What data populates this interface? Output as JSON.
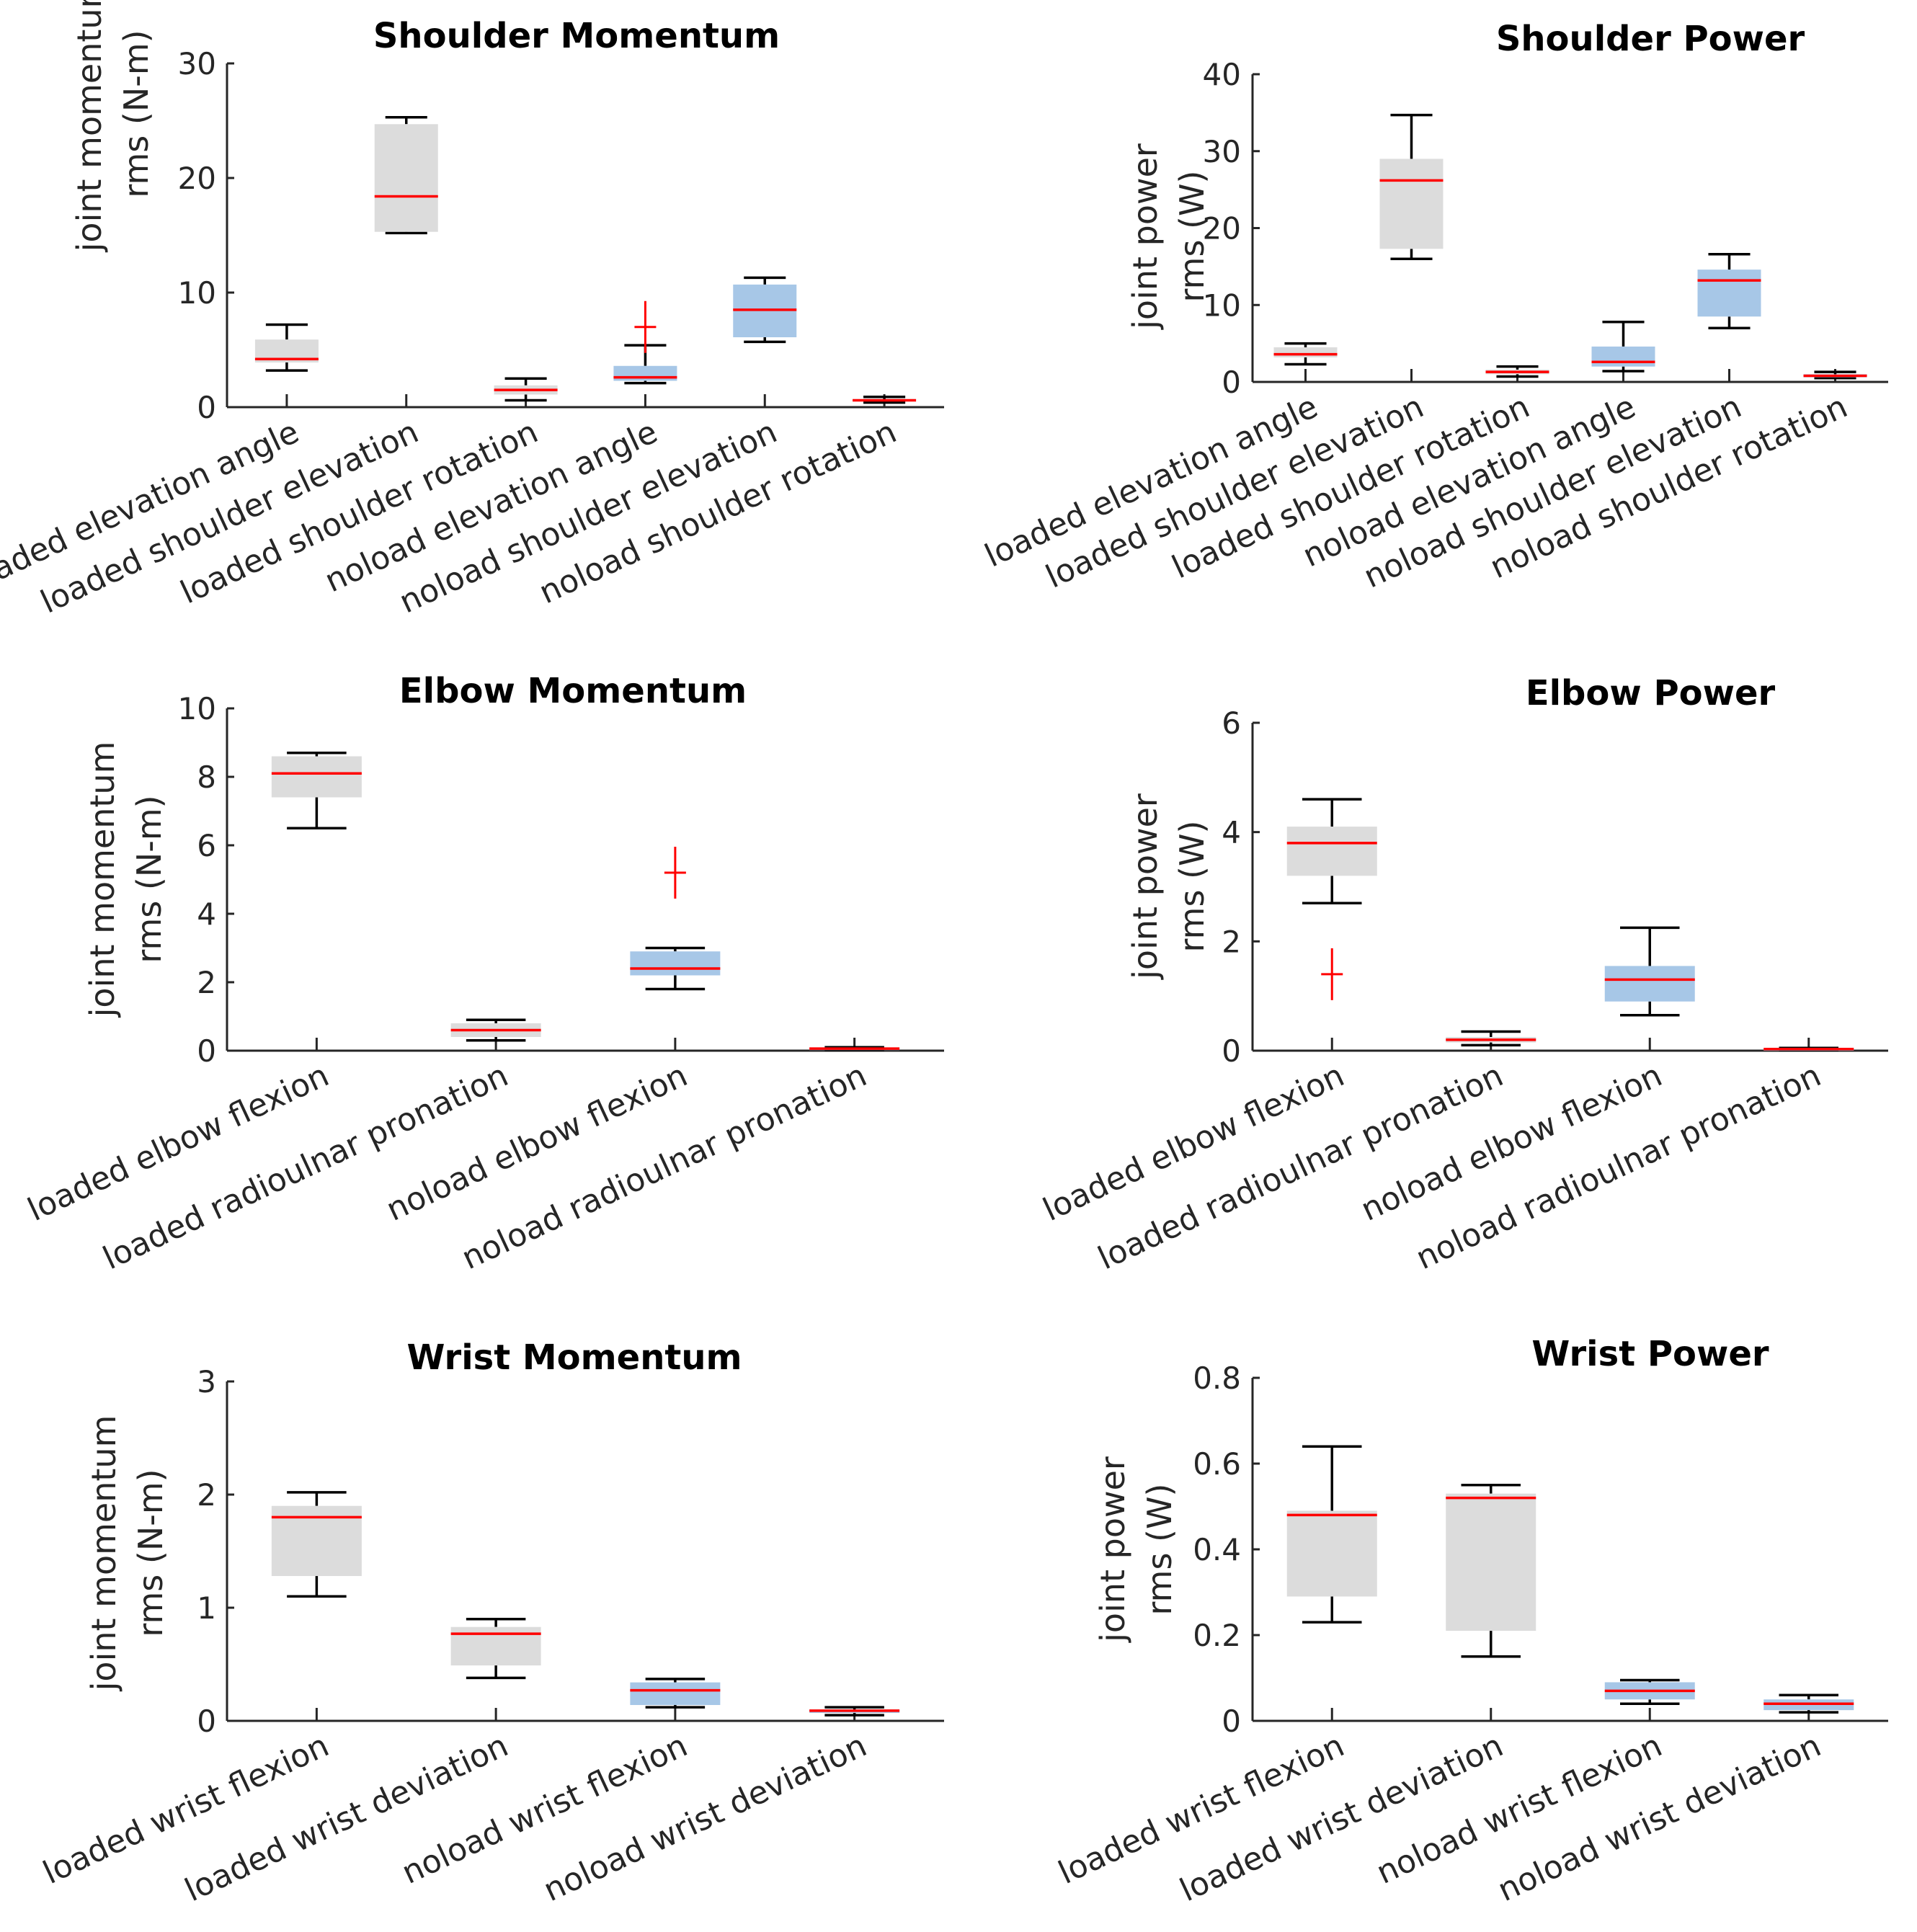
{
  "colors": {
    "loaded": "#dcdcdc",
    "noload": "#a7c7e7",
    "median": "#ff0000",
    "outlier": "#ff0000"
  },
  "chart_data": [
    {
      "type": "box",
      "title": "Shoulder Momentum",
      "ylabel": [
        "joint momentum",
        "rms (N-m)"
      ],
      "ylim": [
        0,
        30
      ],
      "yticks": [
        "0",
        "10",
        "20",
        "30"
      ],
      "categories": [
        "loaded elevation angle",
        "loaded shoulder elevation",
        "loaded shoulder rotation",
        "noload elevation angle",
        "noload shoulder elevation",
        "noload shoulder rotation"
      ],
      "boxes": [
        {
          "group": "loaded",
          "whisker_low": 3.2,
          "q1": 3.9,
          "median": 4.2,
          "q3": 5.9,
          "whisker_high": 7.2,
          "outliers": []
        },
        {
          "group": "loaded",
          "whisker_low": 15.2,
          "q1": 15.3,
          "median": 18.4,
          "q3": 24.7,
          "whisker_high": 25.3,
          "outliers": []
        },
        {
          "group": "loaded",
          "whisker_low": 0.6,
          "q1": 1.1,
          "median": 1.5,
          "q3": 1.9,
          "whisker_high": 2.5,
          "outliers": []
        },
        {
          "group": "noload",
          "whisker_low": 2.1,
          "q1": 2.3,
          "median": 2.6,
          "q3": 3.6,
          "whisker_high": 5.4,
          "outliers": [
            7.0
          ]
        },
        {
          "group": "noload",
          "whisker_low": 5.7,
          "q1": 6.1,
          "median": 8.5,
          "q3": 10.7,
          "whisker_high": 11.3,
          "outliers": []
        },
        {
          "group": "noload",
          "whisker_low": 0.4,
          "q1": 0.5,
          "median": 0.6,
          "q3": 0.7,
          "whisker_high": 0.9,
          "outliers": []
        }
      ]
    },
    {
      "type": "box",
      "title": "Shoulder Power",
      "ylabel": [
        "joint power",
        "rms (W)"
      ],
      "ylim": [
        0,
        40
      ],
      "yticks": [
        "0",
        "10",
        "20",
        "30",
        "40"
      ],
      "categories": [
        "loaded elevation angle",
        "loaded shoulder elevation",
        "loaded shoulder rotation",
        "noload elevation angle",
        "noload shoulder elevation",
        "noload shoulder rotation"
      ],
      "boxes": [
        {
          "group": "loaded",
          "whisker_low": 2.3,
          "q1": 3.2,
          "median": 3.6,
          "q3": 4.5,
          "whisker_high": 5.0,
          "outliers": []
        },
        {
          "group": "loaded",
          "whisker_low": 16.0,
          "q1": 17.3,
          "median": 26.2,
          "q3": 29.0,
          "whisker_high": 34.7,
          "outliers": []
        },
        {
          "group": "loaded",
          "whisker_low": 0.7,
          "q1": 1.0,
          "median": 1.3,
          "q3": 1.6,
          "whisker_high": 2.0,
          "outliers": []
        },
        {
          "group": "noload",
          "whisker_low": 1.4,
          "q1": 2.0,
          "median": 2.6,
          "q3": 4.6,
          "whisker_high": 7.8,
          "outliers": []
        },
        {
          "group": "noload",
          "whisker_low": 7.0,
          "q1": 8.5,
          "median": 13.2,
          "q3": 14.6,
          "whisker_high": 16.6,
          "outliers": []
        },
        {
          "group": "noload",
          "whisker_low": 0.5,
          "q1": 0.6,
          "median": 0.8,
          "q3": 1.0,
          "whisker_high": 1.3,
          "outliers": []
        }
      ]
    },
    {
      "type": "box",
      "title": "Elbow Momentum",
      "ylabel": [
        "joint momentum",
        "rms (N-m)"
      ],
      "ylim": [
        0,
        10
      ],
      "yticks": [
        "0",
        "2",
        "4",
        "6",
        "8",
        "10"
      ],
      "categories": [
        "loaded elbow flexion",
        "loaded radioulnar pronation",
        "noload elbow flexion",
        "noload radioulnar pronation"
      ],
      "boxes": [
        {
          "group": "loaded",
          "whisker_low": 6.5,
          "q1": 7.4,
          "median": 8.1,
          "q3": 8.6,
          "whisker_high": 8.7,
          "outliers": []
        },
        {
          "group": "loaded",
          "whisker_low": 0.3,
          "q1": 0.4,
          "median": 0.6,
          "q3": 0.8,
          "whisker_high": 0.9,
          "outliers": []
        },
        {
          "group": "noload",
          "whisker_low": 1.8,
          "q1": 2.2,
          "median": 2.4,
          "q3": 2.9,
          "whisker_high": 3.0,
          "outliers": [
            5.2
          ]
        },
        {
          "group": "noload",
          "whisker_low": 0.02,
          "q1": 0.04,
          "median": 0.06,
          "q3": 0.08,
          "whisker_high": 0.1,
          "outliers": []
        }
      ]
    },
    {
      "type": "box",
      "title": "Elbow Power",
      "ylabel": [
        "joint power",
        "rms (W)"
      ],
      "ylim": [
        0,
        6
      ],
      "yticks": [
        "0",
        "2",
        "4",
        "6"
      ],
      "categories": [
        "loaded elbow flexion",
        "loaded radioulnar pronation",
        "noload elbow flexion",
        "noload radioulnar pronation"
      ],
      "boxes": [
        {
          "group": "loaded",
          "whisker_low": 2.7,
          "q1": 3.2,
          "median": 3.8,
          "q3": 4.1,
          "whisker_high": 4.6,
          "outliers": [
            1.4
          ]
        },
        {
          "group": "loaded",
          "whisker_low": 0.1,
          "q1": 0.15,
          "median": 0.2,
          "q3": 0.25,
          "whisker_high": 0.35,
          "outliers": []
        },
        {
          "group": "noload",
          "whisker_low": 0.65,
          "q1": 0.9,
          "median": 1.3,
          "q3": 1.55,
          "whisker_high": 2.25,
          "outliers": []
        },
        {
          "group": "noload",
          "whisker_low": 0.01,
          "q1": 0.02,
          "median": 0.03,
          "q3": 0.04,
          "whisker_high": 0.05,
          "outliers": []
        }
      ]
    },
    {
      "type": "box",
      "title": "Wrist Momentum",
      "ylabel": [
        "joint momentum",
        "rms (N-m)"
      ],
      "ylim": [
        0,
        3
      ],
      "yticks": [
        "0",
        "1",
        "2",
        "3"
      ],
      "categories": [
        "loaded wrist flexion",
        "loaded wrist deviation",
        "noload wrist flexion",
        "noload wrist deviation"
      ],
      "boxes": [
        {
          "group": "loaded",
          "whisker_low": 1.1,
          "q1": 1.28,
          "median": 1.8,
          "q3": 1.9,
          "whisker_high": 2.02,
          "outliers": []
        },
        {
          "group": "loaded",
          "whisker_low": 0.38,
          "q1": 0.49,
          "median": 0.77,
          "q3": 0.83,
          "whisker_high": 0.9,
          "outliers": []
        },
        {
          "group": "noload",
          "whisker_low": 0.12,
          "q1": 0.14,
          "median": 0.27,
          "q3": 0.34,
          "whisker_high": 0.37,
          "outliers": []
        },
        {
          "group": "noload",
          "whisker_low": 0.05,
          "q1": 0.07,
          "median": 0.09,
          "q3": 0.1,
          "whisker_high": 0.12,
          "outliers": []
        }
      ]
    },
    {
      "type": "box",
      "title": "Wrist Power",
      "ylabel": [
        "joint power",
        "rms (W)"
      ],
      "ylim": [
        0,
        0.8
      ],
      "yticks": [
        "0",
        "0.2",
        "0.4",
        "0.6",
        "0.8"
      ],
      "categories": [
        "loaded wrist flexion",
        "loaded wrist deviation",
        "noload wrist flexion",
        "noload wrist deviation"
      ],
      "boxes": [
        {
          "group": "loaded",
          "whisker_low": 0.23,
          "q1": 0.29,
          "median": 0.48,
          "q3": 0.49,
          "whisker_high": 0.64,
          "outliers": []
        },
        {
          "group": "loaded",
          "whisker_low": 0.15,
          "q1": 0.21,
          "median": 0.52,
          "q3": 0.53,
          "whisker_high": 0.55,
          "outliers": []
        },
        {
          "group": "noload",
          "whisker_low": 0.04,
          "q1": 0.05,
          "median": 0.07,
          "q3": 0.09,
          "whisker_high": 0.095,
          "outliers": []
        },
        {
          "group": "noload",
          "whisker_low": 0.02,
          "q1": 0.025,
          "median": 0.04,
          "q3": 0.05,
          "whisker_high": 0.06,
          "outliers": []
        }
      ]
    }
  ]
}
